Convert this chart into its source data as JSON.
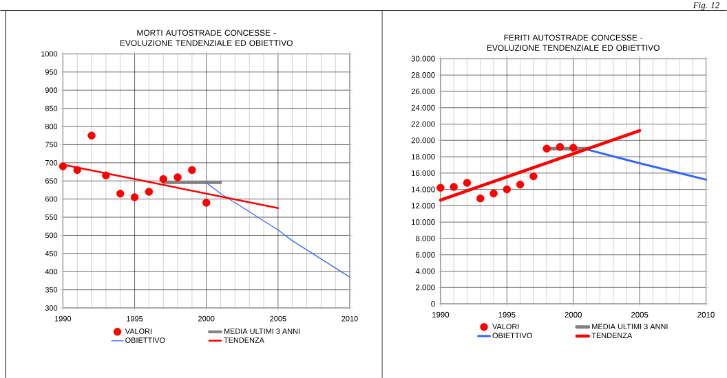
{
  "chart_data": [
    {
      "type": "line",
      "title": "MORTI AUTOSTRADE CONCESSE - EVOLUZIONE TENDENZIALE ED OBIETTIVO",
      "xlim": [
        1990,
        2010
      ],
      "xticks": [
        1990,
        1995,
        2000,
        2005,
        2010
      ],
      "ylim": [
        300,
        1000
      ],
      "yticks": [
        300,
        350,
        400,
        450,
        500,
        550,
        600,
        650,
        700,
        750,
        800,
        850,
        900,
        950,
        1000
      ],
      "grid": true,
      "legend": "bottom",
      "series": [
        {
          "name": "VALORI",
          "type": "scatter",
          "marker": "circle",
          "color": "#ff0000",
          "x": [
            1990,
            1991,
            1992,
            1993,
            1994,
            1995,
            1996,
            1997,
            1998,
            1999,
            2000
          ],
          "values": [
            690,
            680,
            775,
            665,
            615,
            605,
            620,
            655,
            660,
            680,
            590
          ]
        },
        {
          "name": "MEDIA ULTIMI 3 ANNI",
          "color": "#808080",
          "x": [
            1997,
            2001
          ],
          "values": [
            645,
            645
          ]
        },
        {
          "name": "OBIETTIVO",
          "color": "#3366ff",
          "x": [
            2000,
            2001,
            2005,
            2006,
            2010
          ],
          "values": [
            645,
            615,
            515,
            485,
            385
          ]
        },
        {
          "name": "TENDENZA",
          "color": "#ff0000",
          "x": [
            1990,
            2005
          ],
          "values": [
            695,
            575
          ]
        }
      ]
    },
    {
      "type": "line",
      "title": "FERITI AUTOSTRADE CONCESSE - EVOLUZIONE TENDENZIALE ED OBIETTIVO",
      "annotations": [
        "Fig. 12"
      ],
      "xlim": [
        1990,
        2010
      ],
      "xticks": [
        1990,
        1995,
        2000,
        2005,
        2010
      ],
      "ylim": [
        0,
        30000
      ],
      "yticks": [
        0,
        {
          "value": 2000,
          "label": "2.000"
        },
        {
          "value": 4000,
          "label": "4.000"
        },
        {
          "value": 6000,
          "label": "6.000"
        },
        {
          "value": 8000,
          "label": "8.000"
        },
        {
          "value": 10000,
          "label": "10.000"
        },
        {
          "value": 12000,
          "label": "12.000"
        },
        {
          "value": 14000,
          "label": "14.000"
        },
        {
          "value": 16000,
          "label": "16.000"
        },
        {
          "value": 18000,
          "label": "18.000"
        },
        {
          "value": 20000,
          "label": "20.000"
        },
        {
          "value": 22000,
          "label": "22.000"
        },
        {
          "value": 24000,
          "label": "24.000"
        },
        {
          "value": 26000,
          "label": "26.000"
        },
        {
          "value": 28000,
          "label": "28.000"
        },
        {
          "value": 30000,
          "label": "30.000"
        }
      ],
      "grid": true,
      "legend": "bottom",
      "series": [
        {
          "name": "VALORI",
          "type": "scatter",
          "marker": "circle",
          "color": "#ff0000",
          "x": [
            1990,
            1991,
            1992,
            1993,
            1994,
            1995,
            1996,
            1997,
            1998,
            1999,
            2000
          ],
          "values": [
            14200,
            14300,
            14800,
            12900,
            13500,
            14000,
            14600,
            15600,
            19000,
            19200,
            19100
          ]
        },
        {
          "name": "MEDIA ULTIMI 3 ANNI",
          "color": "#808080",
          "x": [
            1998,
            2001
          ],
          "values": [
            19000,
            19000
          ]
        },
        {
          "name": "OBIETTIVO",
          "color": "#3366ff",
          "x": [
            2001,
            2005,
            2010
          ],
          "values": [
            18900,
            17200,
            15200
          ]
        },
        {
          "name": "TENDENZA",
          "color": "#ff0000",
          "x": [
            1990,
            2005
          ],
          "values": [
            12700,
            21200
          ]
        }
      ]
    }
  ]
}
